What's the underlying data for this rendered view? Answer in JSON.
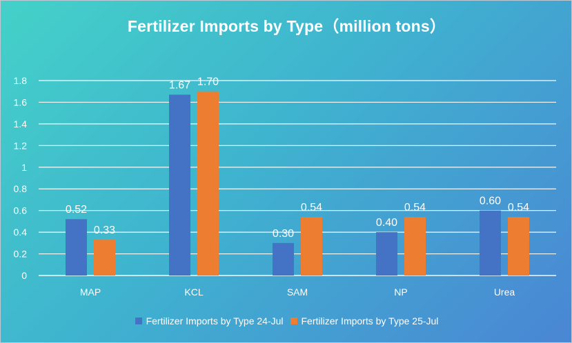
{
  "chart_data": {
    "type": "bar",
    "title": "Fertilizer Imports by Type（million tons）",
    "categories": [
      "MAP",
      "KCL",
      "SAM",
      "NP",
      "Urea"
    ],
    "series": [
      {
        "name": "Fertilizer Imports by Type 24-Jul",
        "values": [
          0.52,
          1.67,
          0.3,
          0.4,
          0.6
        ],
        "labels": [
          "0.52",
          "1.67",
          "0.30",
          "0.40",
          "0.60"
        ],
        "color": "#4472c4"
      },
      {
        "name": "Fertilizer Imports by Type 25-Jul",
        "values": [
          0.33,
          1.7,
          0.54,
          0.54,
          0.54
        ],
        "labels": [
          "0.33",
          "1.70",
          "0.54",
          "0.54",
          "0.54"
        ],
        "color": "#ed7d31"
      }
    ],
    "yticks": [
      "0",
      "0.2",
      "0.4",
      "0.6",
      "0.8",
      "1",
      "1.2",
      "1.4",
      "1.6",
      "1.8"
    ],
    "ylim": [
      0,
      1.8
    ],
    "grid": true,
    "legend_position": "bottom"
  }
}
